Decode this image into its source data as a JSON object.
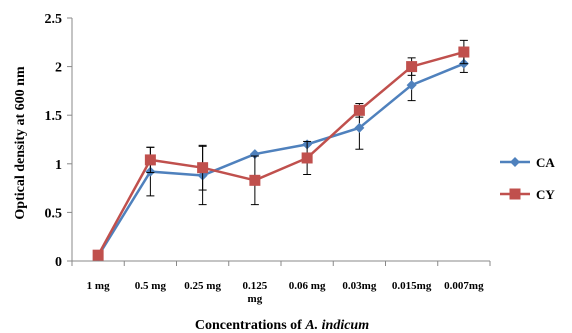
{
  "chart_data": {
    "type": "line",
    "categories": [
      "1 mg",
      "0.5 mg",
      "0.25 mg",
      "0.125 mg",
      "0.06 mg",
      "0.03mg",
      "0.015mg",
      "0.007mg"
    ],
    "x_tick_lines": [
      [
        "1 mg"
      ],
      [
        "0.5 mg"
      ],
      [
        "0.25 mg"
      ],
      [
        "0.125",
        "mg"
      ],
      [
        "0.06 mg"
      ],
      [
        "0.03mg"
      ],
      [
        "0.015mg"
      ],
      [
        "0.007mg"
      ]
    ],
    "series": [
      {
        "name": "CA",
        "color": "#4F81BD",
        "marker": "diamond",
        "values": [
          0.05,
          0.92,
          0.88,
          1.1,
          1.2,
          1.37,
          1.81,
          2.03
        ],
        "errors": [
          0,
          0.25,
          0.3,
          0,
          0,
          0.22,
          0.16,
          0.09
        ]
      },
      {
        "name": "CY",
        "color": "#C0504D",
        "marker": "square",
        "values": [
          0.06,
          1.04,
          0.96,
          0.83,
          1.06,
          1.55,
          2.0,
          2.15
        ],
        "errors": [
          0,
          0.13,
          0.23,
          0.25,
          0.17,
          0.07,
          0.09,
          0.12
        ]
      }
    ],
    "ylim": [
      0,
      2.5
    ],
    "yticks": [
      0,
      0.5,
      1,
      1.5,
      2,
      2.5
    ],
    "ytick_labels": [
      "0",
      "0.5",
      "1",
      "1.5",
      "2",
      "2.5"
    ],
    "ylabel": "Optical density at 600 nm",
    "xlabel_prefix": "Concentrations of ",
    "xlabel_italic": "A. indicum",
    "grid": false,
    "legend_position": "right"
  }
}
